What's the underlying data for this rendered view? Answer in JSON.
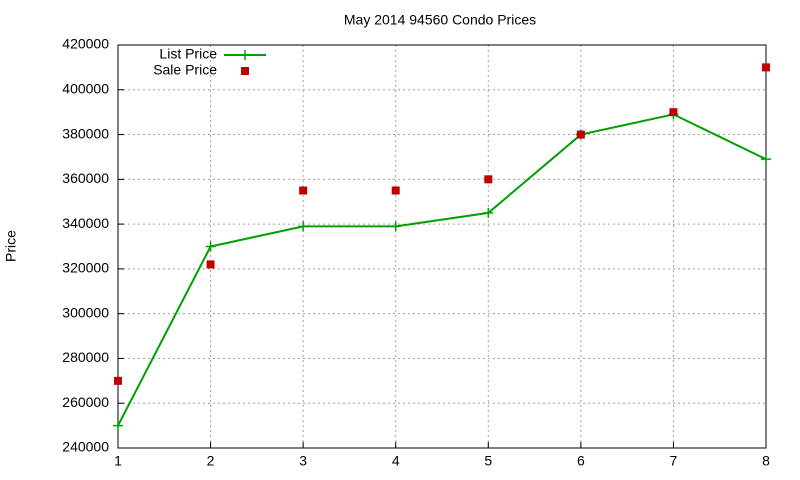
{
  "chart_data": {
    "type": "line",
    "title": "May 2014 94560 Condo Prices",
    "y_label": "Price",
    "x": [
      1,
      2,
      3,
      4,
      5,
      6,
      7,
      8
    ],
    "series": [
      {
        "name": "List Price",
        "color": "#00a000",
        "mode": "lines+points",
        "values": [
          250000,
          330000,
          339000,
          339000,
          345000,
          380000,
          389000,
          369000
        ]
      },
      {
        "name": "Sale Price",
        "color": "#c00000",
        "mode": "points",
        "values": [
          270000,
          322000,
          355000,
          355000,
          360000,
          380000,
          390000,
          410000
        ]
      }
    ],
    "xlim": [
      1,
      8
    ],
    "xticks": [
      1,
      2,
      3,
      4,
      5,
      6,
      7,
      8
    ],
    "ylim": [
      240000,
      420000
    ],
    "yticks": [
      240000,
      260000,
      280000,
      300000,
      320000,
      340000,
      360000,
      380000,
      400000,
      420000
    ],
    "grid": true,
    "legend": "top-left"
  }
}
